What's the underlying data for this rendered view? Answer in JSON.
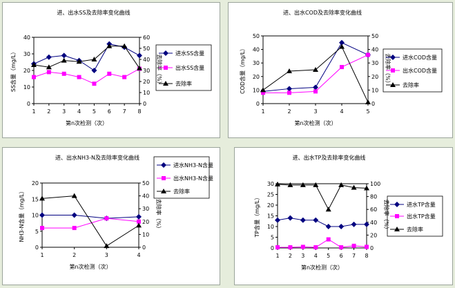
{
  "colors": {
    "inflow": "#000080",
    "outflow": "#ff00ff",
    "removal": "#000000"
  },
  "chart_data": [
    {
      "type": "line",
      "title": "进、出水SS及去除率变化曲线",
      "xlabel": "第n次检测（次）",
      "ylabel": "SS含量（mg/L）",
      "y2label": "去除率（%）",
      "x": [
        1,
        2,
        3,
        4,
        5,
        6,
        7,
        8
      ],
      "xticks": [
        "1",
        "2",
        "3",
        "4",
        "5",
        "6",
        "7",
        "8"
      ],
      "ylim": [
        0,
        40
      ],
      "yticks": [
        "0",
        "10",
        "20",
        "30",
        "40"
      ],
      "y2lim": [
        0,
        60
      ],
      "y2ticks": [
        "0",
        "10",
        "20",
        "30",
        "40",
        "50",
        "60"
      ],
      "legend_position": "right",
      "series": [
        {
          "name": "进水SS含量",
          "axis": "left",
          "marker": "diamond",
          "values": [
            24,
            28,
            29,
            26,
            20,
            36,
            34,
            29
          ]
        },
        {
          "name": "出水SS含量",
          "axis": "left",
          "marker": "square",
          "values": [
            16,
            19,
            18,
            16,
            12,
            18,
            16,
            21
          ]
        },
        {
          "name": "去除率",
          "axis": "right",
          "marker": "triangle",
          "values": [
            35,
            33,
            39,
            38,
            40,
            52,
            52,
            32
          ]
        }
      ]
    },
    {
      "type": "line",
      "title": "进、出水COD及去除率变化曲线",
      "xlabel": "第n次检测（次）",
      "ylabel": "COD含量（mg/L）",
      "y2label": "去除率（%）",
      "x": [
        1,
        2,
        3,
        4,
        5
      ],
      "xticks": [
        "1",
        "2",
        "3",
        "4",
        "5"
      ],
      "ylim": [
        0,
        50
      ],
      "yticks": [
        "0",
        "10",
        "20",
        "30",
        "40",
        "50"
      ],
      "y2lim": [
        0,
        50
      ],
      "y2ticks": [
        "0",
        "10",
        "20",
        "30",
        "40",
        "50"
      ],
      "legend_position": "right",
      "series": [
        {
          "name": "进水COD含量",
          "axis": "left",
          "marker": "diamond",
          "values": [
            9,
            11,
            12,
            45,
            36
          ]
        },
        {
          "name": "出水COD含量",
          "axis": "left",
          "marker": "square",
          "values": [
            8,
            8,
            9,
            27,
            36
          ]
        },
        {
          "name": "去除率",
          "axis": "right",
          "marker": "triangle",
          "values": [
            10,
            24,
            25,
            42,
            1
          ]
        }
      ]
    },
    {
      "type": "line",
      "title": "进、出水NH3-N及去除率变化曲线",
      "xlabel": "第n次检测（次）",
      "ylabel": "NH3-N含量（mg/L）",
      "y2label": "去除率（%）",
      "x": [
        1,
        2,
        3,
        4
      ],
      "xticks": [
        "1",
        "2",
        "3",
        "4"
      ],
      "ylim": [
        0,
        20
      ],
      "yticks": [
        "0",
        "5",
        "10",
        "15",
        "20"
      ],
      "y2lim": [
        0,
        50
      ],
      "y2ticks": [
        "0",
        "10",
        "20",
        "30",
        "40",
        "50"
      ],
      "legend_position": "right",
      "series": [
        {
          "name": "进水NH3-N含量",
          "axis": "left",
          "marker": "diamond",
          "values": [
            10,
            10,
            9,
            9.5
          ]
        },
        {
          "name": "出水NH3-N含量",
          "axis": "left",
          "marker": "square",
          "values": [
            6,
            6,
            9,
            8
          ]
        },
        {
          "name": "去除率",
          "axis": "right",
          "marker": "triangle",
          "values": [
            38,
            40,
            1,
            17
          ]
        }
      ]
    },
    {
      "type": "line",
      "title": "进、出水TP及去除率变化曲线",
      "xlabel": "第n次检测（次）",
      "ylabel": "TP含量（mg/L）",
      "y2label": "去除率（%）",
      "x": [
        1,
        2,
        3,
        4,
        5,
        6,
        7,
        8
      ],
      "xticks": [
        "1",
        "2",
        "3",
        "4",
        "5",
        "6",
        "7",
        "8"
      ],
      "ylim": [
        0,
        30
      ],
      "yticks": [
        "0",
        "5",
        "10",
        "15",
        "20",
        "25",
        "30"
      ],
      "y2lim": [
        0,
        100
      ],
      "y2ticks": [
        "0",
        "20",
        "40",
        "60",
        "80",
        "100"
      ],
      "legend_position": "right",
      "series": [
        {
          "name": "进水TP含量",
          "axis": "left",
          "marker": "diamond",
          "values": [
            13,
            14,
            13,
            13,
            10,
            10,
            11,
            11
          ]
        },
        {
          "name": "出水TP含量",
          "axis": "left",
          "marker": "square",
          "values": [
            0.3,
            0.3,
            0.5,
            0.3,
            4,
            0.3,
            1,
            0.5
          ]
        },
        {
          "name": "去除率",
          "axis": "right",
          "marker": "triangle",
          "values": [
            99,
            98,
            98,
            98,
            60,
            98,
            94,
            93
          ]
        }
      ]
    }
  ]
}
